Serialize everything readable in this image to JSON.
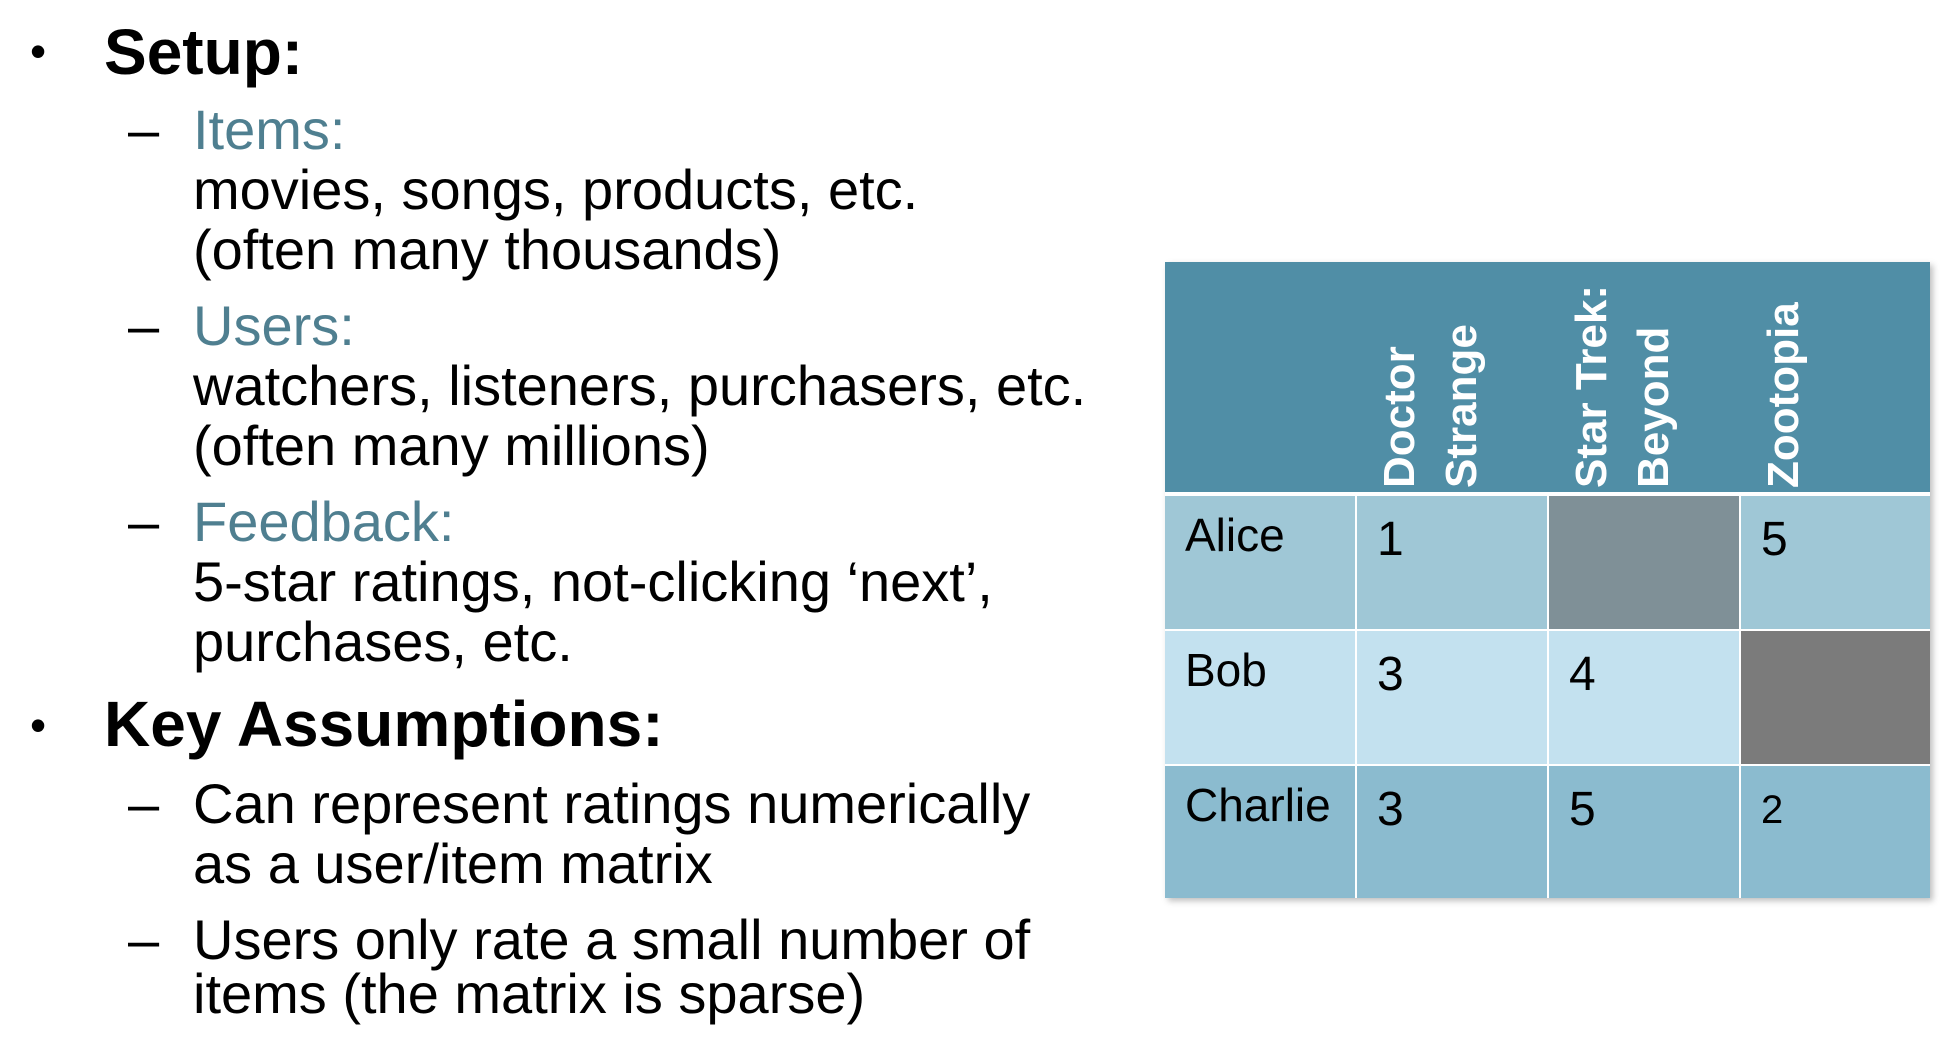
{
  "setup": {
    "bullet": "•",
    "heading": "Setup:",
    "items": {
      "dash": "–",
      "label": "Items:",
      "line1": "movies, songs, products, etc.",
      "line2": "(often many thousands)"
    },
    "users": {
      "dash": "–",
      "label": "Users:",
      "line1": "watchers, listeners, purchasers, etc.",
      "line2": "(often many millions)"
    },
    "feedback": {
      "dash": "–",
      "label": "Feedback:",
      "line1": "5-star ratings, not-clicking ‘next’,",
      "line2": "purchases, etc."
    }
  },
  "assumptions": {
    "bullet": "•",
    "heading": "Key Assumptions:",
    "a1": {
      "dash": "–",
      "line1": "Can represent ratings numerically",
      "line2": "as a user/item matrix"
    },
    "a2": {
      "dash": "–",
      "line1": "Users only rate a small number of",
      "line2": "items (the matrix is sparse)"
    }
  },
  "matrix": {
    "columns": [
      {
        "line1": "Doctor",
        "line2": "Strange"
      },
      {
        "line1": "Star Trek:",
        "line2": "Beyond"
      },
      {
        "line1": "Zootopia",
        "line2": ""
      }
    ],
    "rows": [
      {
        "name": "Alice",
        "values": [
          "1",
          "",
          "5"
        ]
      },
      {
        "name": "Bob",
        "values": [
          "3",
          "4",
          ""
        ]
      },
      {
        "name": "Charlie",
        "values": [
          "3",
          "5",
          "2"
        ]
      }
    ],
    "colors": {
      "header": "#508ea6",
      "row_alice": "#9fc7d6",
      "row_bob": "#c3e1ef",
      "row_charlie": "#8bbbcf",
      "missing_alice": "#7f9097",
      "missing_bob": "#7b7b7b"
    }
  }
}
